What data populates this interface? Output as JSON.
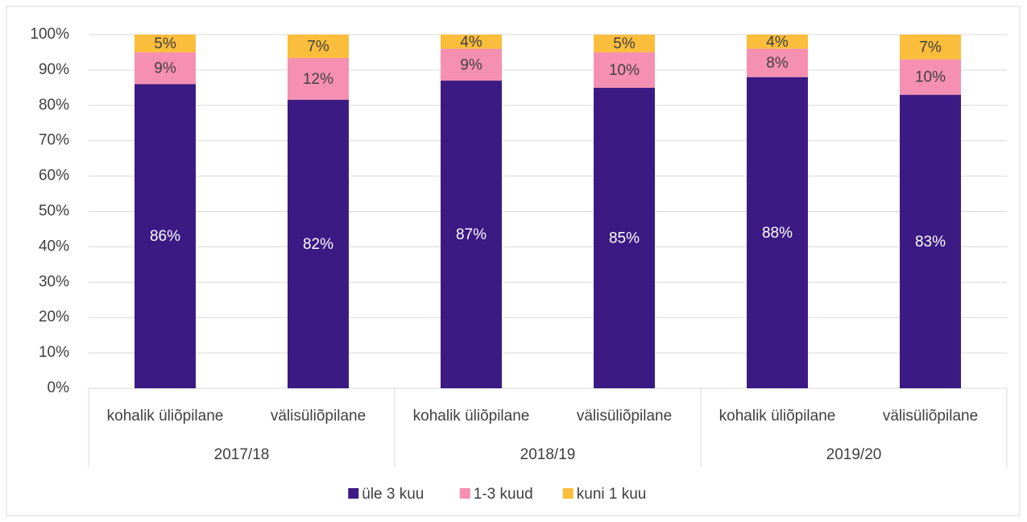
{
  "chart_data": {
    "type": "stacked_bar",
    "categories": [
      "kohalik üliõpilane",
      "välisüliõpilane",
      "kohalik üliõpilane",
      "välisüliõpilane",
      "kohalik üliõpilane",
      "välisüliõpilane"
    ],
    "groups": [
      "2017/18",
      "2018/19",
      "2019/20"
    ],
    "series": [
      {
        "name": "üle 3 kuu",
        "color": "#3c1a84",
        "values": [
          86,
          81.6,
          87,
          85,
          88,
          83
        ],
        "value_labels": [
          "86%",
          "82%",
          "87%",
          "85%",
          "88%",
          "83%"
        ]
      },
      {
        "name": "1-3 kuud",
        "color": "#f690b2",
        "values": [
          9,
          11.8,
          9,
          10,
          8,
          10
        ],
        "value_labels": [
          "9%",
          "12%",
          "9%",
          "10%",
          "8%",
          "10%"
        ]
      },
      {
        "name": "kuni 1 kuu",
        "color": "#fbbd3c",
        "values": [
          5,
          6.6,
          4,
          5,
          4,
          7
        ],
        "value_labels": [
          "5%",
          "7%",
          "4%",
          "5%",
          "4%",
          "7%"
        ]
      }
    ],
    "ylim": [
      0,
      100
    ],
    "yticks": [
      {
        "value": 0,
        "label": "0%"
      },
      {
        "value": 10,
        "label": "10%"
      },
      {
        "value": 20,
        "label": "20%"
      },
      {
        "value": 30,
        "label": "30%"
      },
      {
        "value": 40,
        "label": "40%"
      },
      {
        "value": 50,
        "label": "50%"
      },
      {
        "value": 60,
        "label": "60%"
      },
      {
        "value": 70,
        "label": "70%"
      },
      {
        "value": 80,
        "label": "80%"
      },
      {
        "value": 90,
        "label": "90%"
      },
      {
        "value": 100,
        "label": "100%"
      }
    ],
    "grid": true,
    "legend": "bottom"
  }
}
